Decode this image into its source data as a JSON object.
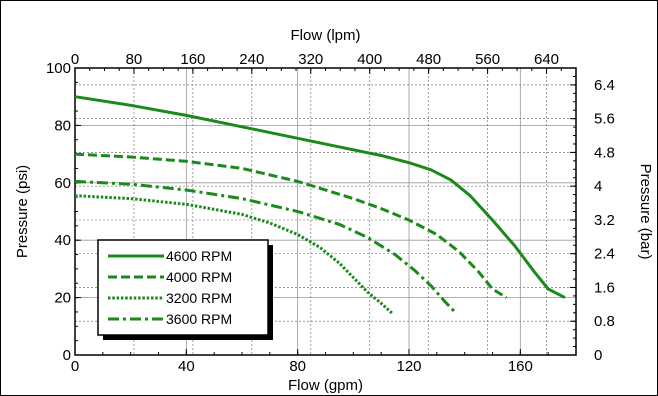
{
  "chart_data": {
    "type": "line",
    "xlabel": "Flow (gpm)",
    "ylabel": "Pressure (psi)",
    "x2label": "Flow (lpm)",
    "y2label": "Pressure (bar)",
    "xlim": [
      0,
      180
    ],
    "ylim": [
      0,
      100
    ],
    "x2lim": [
      0,
      680
    ],
    "y2lim": [
      0,
      6.8
    ],
    "xticks": [
      0,
      40,
      80,
      120,
      160
    ],
    "yticks": [
      0,
      20,
      40,
      60,
      80,
      100
    ],
    "x2ticks": [
      0,
      80,
      160,
      240,
      320,
      400,
      480,
      560,
      640
    ],
    "y2ticks": [
      0,
      0.8,
      1.6,
      2.4,
      3.2,
      4,
      4.8,
      5.6,
      6.4
    ],
    "grid": true,
    "legend_position": "bottom-left",
    "series": [
      {
        "name": "4600 RPM",
        "style": "solid",
        "color": "#1a8a1a",
        "x": [
          0,
          20,
          40,
          60,
          80,
          100,
          110,
          120,
          128,
          135,
          142,
          150,
          158,
          165,
          170,
          176
        ],
        "y": [
          90,
          87,
          83.5,
          79.5,
          75.5,
          71.5,
          69.5,
          67,
          64.5,
          61,
          55.5,
          47,
          38,
          29,
          23,
          20
        ]
      },
      {
        "name": "4000 RPM",
        "style": "dashed",
        "color": "#1a8a1a",
        "x": [
          0,
          20,
          40,
          60,
          80,
          100,
          110,
          120,
          130,
          138,
          145,
          150,
          155
        ],
        "y": [
          70,
          69,
          67.5,
          65,
          60.5,
          54.5,
          51,
          47,
          42,
          36,
          29,
          23,
          20
        ]
      },
      {
        "name": "3200 RPM",
        "style": "dotted",
        "color": "#1a8a1a",
        "x": [
          0,
          20,
          40,
          60,
          70,
          80,
          88,
          95,
          100,
          105,
          110,
          114
        ],
        "y": [
          55.5,
          54.5,
          52.5,
          49,
          46,
          42,
          37.5,
          32,
          27,
          22,
          18,
          14.5
        ]
      },
      {
        "name": "3600 RPM",
        "style": "dashdot",
        "color": "#1a8a1a",
        "x": [
          0,
          20,
          40,
          60,
          80,
          95,
          105,
          115,
          122,
          128,
          133,
          137
        ],
        "y": [
          60.5,
          59.5,
          57.5,
          54.5,
          50,
          45.5,
          41,
          35,
          29.5,
          24,
          18.5,
          14.5
        ]
      }
    ]
  }
}
